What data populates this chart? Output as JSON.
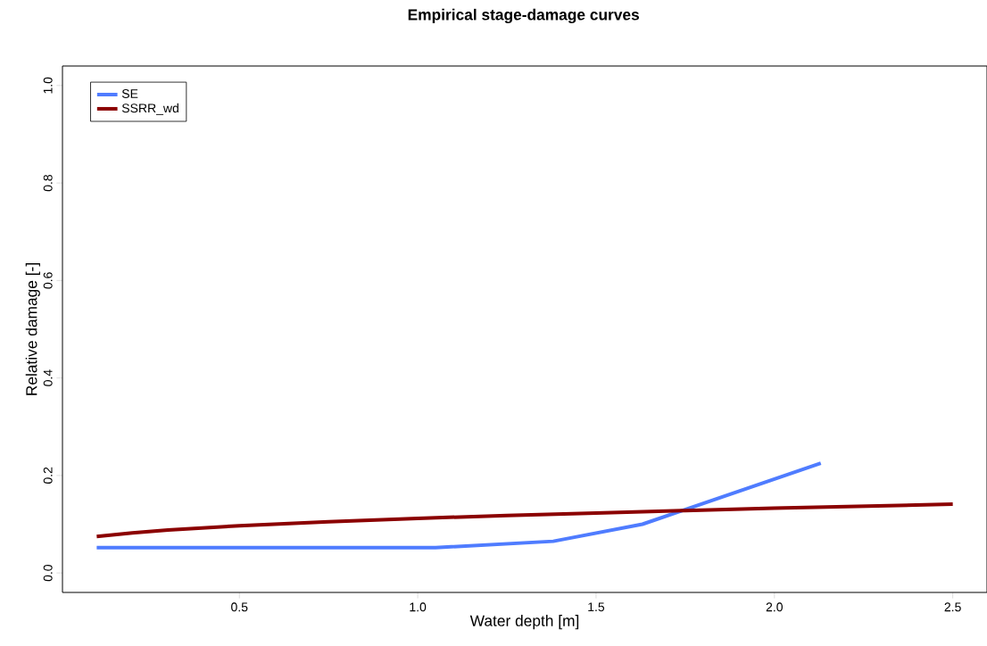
{
  "chart_data": {
    "type": "line",
    "title": "Empirical stage-damage curves",
    "xlabel": "Water depth [m]",
    "ylabel": "Relative damage [-]",
    "xlim": [
      0.004,
      2.596
    ],
    "ylim": [
      -0.04,
      1.04
    ],
    "xticks": [
      {
        "value": 0.5,
        "label": "0.5"
      },
      {
        "value": 1,
        "label": "1.0"
      },
      {
        "value": 1.5,
        "label": "1.5"
      },
      {
        "value": 2,
        "label": "2.0"
      },
      {
        "value": 2.5,
        "label": "2.5"
      }
    ],
    "yticks": [
      {
        "value": 0,
        "label": "0.0"
      },
      {
        "value": 0.2,
        "label": "0.2"
      },
      {
        "value": 0.4,
        "label": "0.4"
      },
      {
        "value": 0.6,
        "label": "0.6"
      },
      {
        "value": 0.8,
        "label": "0.8"
      },
      {
        "value": 1,
        "label": "1.0"
      }
    ],
    "grid": false,
    "legend": "top left",
    "marker": "none",
    "line_style": "solid",
    "series": [
      {
        "name": "SE",
        "color": "#4f7cff",
        "x": [
          0.1,
          1.05,
          1.38,
          1.63,
          2.13
        ],
        "values": [
          0.052,
          0.052,
          0.065,
          0.1,
          0.225
        ]
      },
      {
        "name": "SSRR_wd",
        "color": "#8b0000",
        "x": [
          0.1,
          0.2,
          0.3,
          0.5,
          0.75,
          1.0,
          1.25,
          1.5,
          1.75,
          2.0,
          2.25,
          2.5
        ],
        "values": [
          0.075,
          0.082,
          0.088,
          0.097,
          0.105,
          0.112,
          0.118,
          0.123,
          0.128,
          0.133,
          0.137,
          0.141
        ]
      }
    ]
  }
}
